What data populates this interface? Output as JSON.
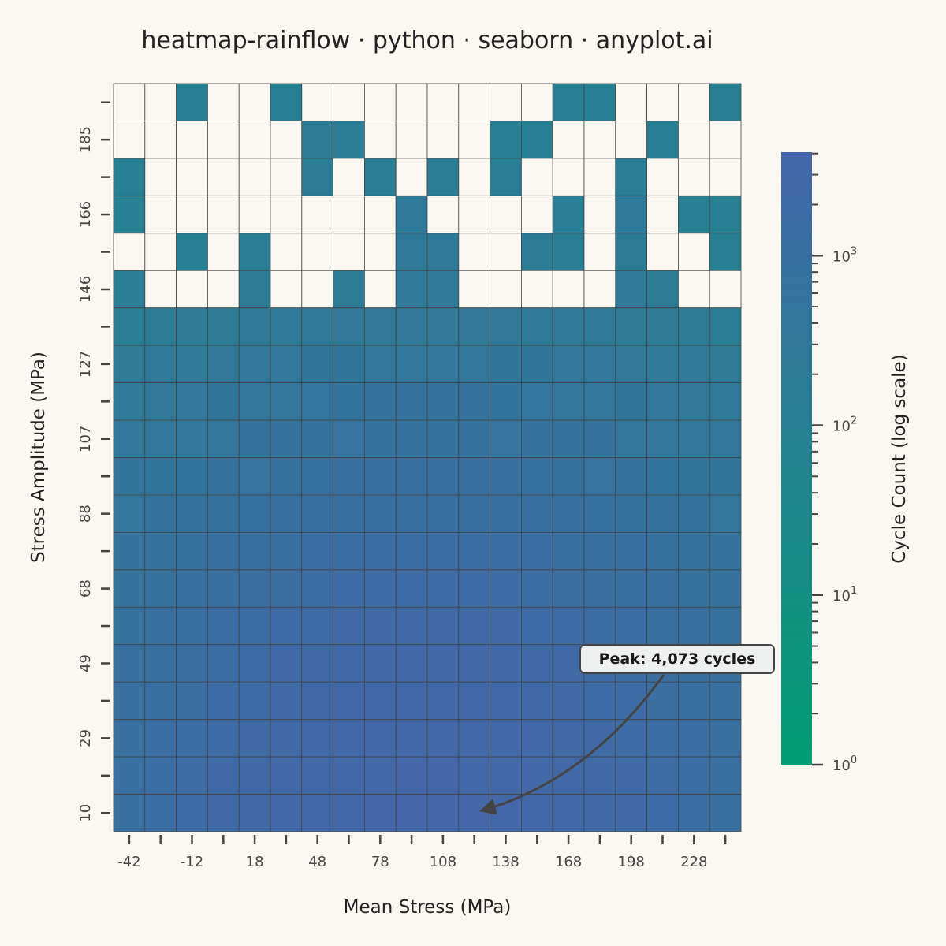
{
  "chart_data": {
    "type": "heatmap",
    "title": "heatmap-rainflow · python · seaborn · anyplot.ai",
    "xlabel": "Mean Stress (MPa)",
    "ylabel": "Stress Amplitude (MPa)",
    "colorbar_label": "Cycle Count (log scale)",
    "color_scale": "log",
    "color_range": [
      1,
      4073
    ],
    "colors": {
      "low": "#009e73",
      "high": "#4467a9",
      "empty": "#faf8f1",
      "grid": "#444444"
    },
    "x_tick_labels": [
      "-42",
      "-12",
      "18",
      "48",
      "78",
      "108",
      "138",
      "168",
      "198",
      "228"
    ],
    "y_tick_labels": [
      "10",
      "29",
      "49",
      "68",
      "88",
      "107",
      "127",
      "146",
      "166",
      "185"
    ],
    "colorbar_ticks": [
      "10^0",
      "10^1",
      "10^2",
      "10^3"
    ],
    "n_mean_bins": 20,
    "n_amplitude_bins": 20,
    "cycle_counts_top_row_first": [
      [
        0,
        0,
        100,
        0,
        0,
        100,
        0,
        0,
        0,
        0,
        0,
        0,
        0,
        0,
        100,
        100,
        0,
        0,
        0,
        100
      ],
      [
        0,
        0,
        0,
        0,
        0,
        0,
        200,
        150,
        0,
        0,
        0,
        0,
        100,
        100,
        0,
        0,
        0,
        100,
        0,
        0
      ],
      [
        100,
        0,
        0,
        0,
        0,
        0,
        200,
        0,
        150,
        0,
        150,
        0,
        150,
        0,
        0,
        0,
        150,
        0,
        0,
        0
      ],
      [
        100,
        0,
        0,
        0,
        0,
        0,
        0,
        0,
        0,
        250,
        0,
        0,
        0,
        0,
        150,
        0,
        250,
        0,
        100,
        100
      ],
      [
        0,
        0,
        100,
        0,
        150,
        0,
        0,
        0,
        0,
        250,
        250,
        0,
        0,
        200,
        150,
        0,
        200,
        0,
        0,
        100
      ],
      [
        150,
        0,
        0,
        0,
        200,
        0,
        0,
        200,
        0,
        250,
        250,
        0,
        0,
        0,
        0,
        0,
        250,
        200,
        0,
        0
      ],
      [
        180,
        200,
        220,
        240,
        260,
        280,
        290,
        300,
        310,
        320,
        320,
        310,
        300,
        290,
        280,
        260,
        240,
        220,
        200,
        180
      ],
      [
        230,
        260,
        290,
        320,
        350,
        380,
        400,
        420,
        430,
        440,
        440,
        430,
        420,
        400,
        380,
        350,
        320,
        290,
        260,
        230
      ],
      [
        280,
        320,
        360,
        400,
        440,
        480,
        510,
        540,
        560,
        570,
        570,
        560,
        540,
        510,
        480,
        440,
        400,
        360,
        320,
        280
      ],
      [
        340,
        390,
        440,
        500,
        560,
        620,
        660,
        700,
        730,
        750,
        750,
        730,
        700,
        660,
        620,
        560,
        500,
        440,
        390,
        340
      ],
      [
        400,
        470,
        540,
        620,
        700,
        780,
        840,
        900,
        950,
        980,
        980,
        950,
        900,
        840,
        780,
        700,
        620,
        540,
        470,
        400
      ],
      [
        480,
        570,
        660,
        760,
        870,
        980,
        1060,
        1140,
        1200,
        1240,
        1240,
        1200,
        1140,
        1060,
        980,
        870,
        760,
        660,
        570,
        480
      ],
      [
        570,
        680,
        800,
        930,
        1070,
        1210,
        1320,
        1420,
        1500,
        1560,
        1560,
        1500,
        1420,
        1320,
        1210,
        1070,
        930,
        800,
        680,
        570
      ],
      [
        670,
        810,
        960,
        1120,
        1300,
        1480,
        1620,
        1760,
        1870,
        1940,
        1940,
        1870,
        1760,
        1620,
        1480,
        1300,
        1120,
        960,
        810,
        670
      ],
      [
        780,
        950,
        1130,
        1330,
        1550,
        1770,
        1950,
        2120,
        2260,
        2350,
        2350,
        2260,
        2120,
        1950,
        1770,
        1550,
        1330,
        1130,
        950,
        780
      ],
      [
        890,
        1090,
        1310,
        1550,
        1810,
        2070,
        2290,
        2500,
        2670,
        2780,
        2780,
        2670,
        2500,
        2290,
        2070,
        1810,
        1550,
        1310,
        1090,
        890
      ],
      [
        990,
        1220,
        1480,
        1760,
        2060,
        2370,
        2630,
        2880,
        3080,
        3220,
        3220,
        3080,
        2880,
        2630,
        2370,
        2060,
        1760,
        1480,
        1220,
        990
      ],
      [
        1070,
        1330,
        1620,
        1940,
        2280,
        2630,
        2930,
        3210,
        3450,
        3610,
        3610,
        3450,
        3210,
        2930,
        2630,
        2280,
        1940,
        1620,
        1330,
        1070
      ],
      [
        1120,
        1400,
        1720,
        2070,
        2440,
        2830,
        3160,
        3480,
        3740,
        3920,
        3920,
        3740,
        3480,
        3160,
        2830,
        2440,
        2070,
        1720,
        1400,
        1120
      ],
      [
        1130,
        1420,
        1750,
        2110,
        2500,
        2900,
        3250,
        3590,
        3870,
        4050,
        4073,
        3870,
        3590,
        3250,
        2900,
        2500,
        2110,
        1750,
        1420,
        1130
      ]
    ],
    "annotation": {
      "text": "Peak: 4,073 cycles",
      "mean_bin": 10,
      "amplitude_bin": 0
    }
  }
}
